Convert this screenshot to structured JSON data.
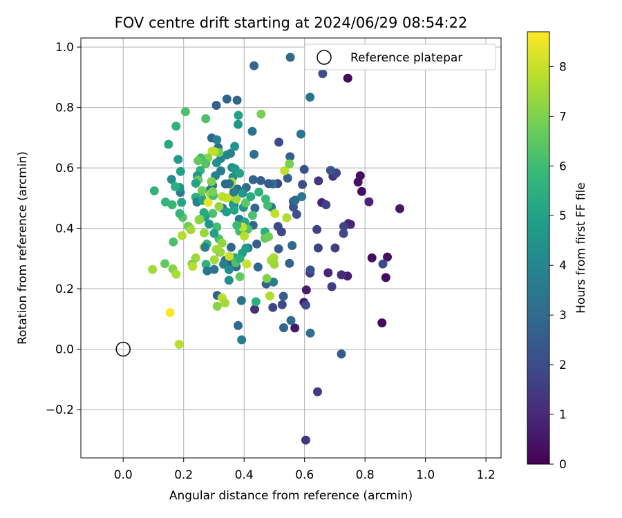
{
  "chart_data": {
    "type": "scatter",
    "title": "FOV centre drift starting at 2024/06/29 08:54:22",
    "xlabel": "Angular distance from reference (arcmin)",
    "ylabel": "Rotation from reference (arcmin)",
    "xlim": [
      -0.14,
      1.25
    ],
    "ylim": [
      -0.36,
      1.03
    ],
    "xticks": [
      "0.0",
      "0.2",
      "0.4",
      "0.6",
      "0.8",
      "1.0",
      "1.2"
    ],
    "xtick_values": [
      0.0,
      0.2,
      0.4,
      0.6,
      0.8,
      1.0,
      1.2
    ],
    "yticks": [
      "−0.2",
      "0.0",
      "0.2",
      "0.4",
      "0.6",
      "0.8",
      "1.0"
    ],
    "ytick_values": [
      -0.2,
      0.0,
      0.2,
      0.4,
      0.6,
      0.8,
      1.0
    ],
    "grid": true,
    "legend": {
      "position": "top-right",
      "entries": [
        "Reference platepar"
      ]
    },
    "reference": {
      "x": 0.0,
      "y": 0.0
    },
    "colorbar": {
      "label": "Hours from first FF file",
      "min": 0,
      "max": 8.7,
      "ticks": [
        "0",
        "1",
        "2",
        "3",
        "4",
        "5",
        "6",
        "7",
        "8"
      ],
      "tick_values": [
        0,
        1,
        2,
        3,
        4,
        5,
        6,
        7,
        8
      ],
      "colormap": "viridis"
    },
    "points": [
      [
        0.743,
        0.897,
        0.2
      ],
      [
        0.856,
        0.087,
        0.2
      ],
      [
        0.915,
        0.465,
        0.6
      ],
      [
        0.869,
        0.237,
        0.3
      ],
      [
        0.874,
        0.305,
        0.4
      ],
      [
        0.823,
        0.302,
        0.3
      ],
      [
        0.784,
        0.574,
        0.4
      ],
      [
        0.777,
        0.553,
        0.4
      ],
      [
        0.789,
        0.522,
        0.3
      ],
      [
        0.813,
        0.488,
        0.9
      ],
      [
        0.745,
        0.416,
        1.1
      ],
      [
        0.742,
        0.242,
        0.7
      ],
      [
        0.722,
        0.246,
        1.1
      ],
      [
        0.752,
        0.413,
        0.9
      ],
      [
        0.657,
        0.485,
        0.8
      ],
      [
        0.678,
        0.253,
        0.9
      ],
      [
        0.568,
        0.07,
        0.6
      ],
      [
        0.598,
        0.155,
        0.6
      ],
      [
        0.606,
        0.196,
        0.7
      ],
      [
        0.604,
        -0.301,
        1.3
      ],
      [
        0.643,
        -0.141,
        1.5
      ],
      [
        0.618,
        0.252,
        1.4
      ],
      [
        0.646,
        0.557,
        1.3
      ],
      [
        0.694,
        0.572,
        1.3
      ],
      [
        0.729,
        0.383,
        1.9
      ],
      [
        0.705,
        0.583,
        1.8
      ],
      [
        0.641,
        0.396,
        1.7
      ],
      [
        0.645,
        0.335,
        1.7
      ],
      [
        0.701,
        0.335,
        1.6
      ],
      [
        0.69,
        0.207,
        1.6
      ],
      [
        0.671,
        0.478,
        1.7
      ],
      [
        0.859,
        0.282,
        1.9
      ],
      [
        0.73,
        0.406,
        1.8
      ],
      [
        0.66,
        0.912,
        2.1
      ],
      [
        0.722,
        -0.016,
        2.5
      ],
      [
        0.686,
        0.592,
        2.3
      ],
      [
        0.435,
        0.132,
        1.2
      ],
      [
        0.495,
        0.138,
        1.8
      ],
      [
        0.526,
        0.147,
        1.9
      ],
      [
        0.515,
        0.685,
        2.0
      ],
      [
        0.511,
        0.548,
        1.8
      ],
      [
        0.524,
        0.388,
        1.9
      ],
      [
        0.512,
        0.406,
        2.0
      ],
      [
        0.604,
        0.146,
        2.0
      ],
      [
        0.593,
        0.545,
        2.1
      ],
      [
        0.574,
        0.446,
        2.1
      ],
      [
        0.599,
        0.595,
        2.2
      ],
      [
        0.563,
        0.489,
        2.2
      ],
      [
        0.619,
        0.262,
        2.2
      ],
      [
        0.563,
        0.47,
        2.4
      ],
      [
        0.514,
        0.332,
        2.5
      ],
      [
        0.53,
        0.175,
        2.5
      ],
      [
        0.544,
        0.566,
        2.6
      ],
      [
        0.55,
        0.284,
        2.7
      ],
      [
        0.552,
        0.637,
        2.7
      ],
      [
        0.531,
        0.071,
        2.8
      ],
      [
        0.559,
        0.343,
        2.9
      ],
      [
        0.555,
        0.095,
        3.0
      ],
      [
        0.619,
        0.053,
        3.2
      ],
      [
        0.553,
        0.966,
        3.0
      ],
      [
        0.433,
        0.938,
        2.9
      ],
      [
        0.343,
        0.828,
        2.8
      ],
      [
        0.377,
        0.824,
        2.8
      ],
      [
        0.308,
        0.807,
        2.6
      ],
      [
        0.618,
        0.834,
        3.3
      ],
      [
        0.588,
        0.712,
        3.4
      ],
      [
        0.591,
        0.505,
        3.5
      ],
      [
        0.569,
        0.493,
        3.1
      ],
      [
        0.495,
        0.547,
        3.2
      ],
      [
        0.481,
        0.548,
        2.5
      ],
      [
        0.455,
        0.558,
        2.6
      ],
      [
        0.43,
        0.561,
        2.7
      ],
      [
        0.433,
        0.645,
        3.2
      ],
      [
        0.427,
        0.721,
        3.4
      ],
      [
        0.407,
        0.535,
        3.1
      ],
      [
        0.436,
        0.467,
        2.9
      ],
      [
        0.43,
        0.41,
        3.0
      ],
      [
        0.442,
        0.348,
        2.6
      ],
      [
        0.446,
        0.272,
        2.9
      ],
      [
        0.473,
        0.216,
        2.7
      ],
      [
        0.49,
        0.47,
        3.6
      ],
      [
        0.497,
        0.222,
        3.6
      ],
      [
        0.413,
        0.335,
        3.3
      ],
      [
        0.374,
        0.273,
        2.9
      ],
      [
        0.38,
        0.078,
        2.9
      ],
      [
        0.391,
        0.161,
        3.3
      ],
      [
        0.392,
        0.031,
        3.7
      ],
      [
        0.311,
        0.178,
        2.7
      ],
      [
        0.32,
        0.321,
        3.0
      ],
      [
        0.338,
        0.294,
        3.1
      ],
      [
        0.358,
        0.285,
        2.5
      ],
      [
        0.357,
        0.337,
        2.9
      ],
      [
        0.332,
        0.281,
        3.8
      ],
      [
        0.35,
        0.263,
        4.3
      ],
      [
        0.35,
        0.228,
        4.4
      ],
      [
        0.378,
        0.53,
        3.0
      ],
      [
        0.367,
        0.477,
        3.4
      ],
      [
        0.384,
        0.43,
        3.6
      ],
      [
        0.329,
        0.467,
        3.5
      ],
      [
        0.296,
        0.542,
        3.5
      ],
      [
        0.286,
        0.526,
        3.6
      ],
      [
        0.293,
        0.699,
        2.8
      ],
      [
        0.314,
        0.667,
        3.1
      ],
      [
        0.323,
        0.631,
        3.8
      ],
      [
        0.31,
        0.693,
        3.9
      ],
      [
        0.343,
        0.643,
        4.0
      ],
      [
        0.355,
        0.648,
        3.9
      ],
      [
        0.36,
        0.601,
        4.3
      ],
      [
        0.369,
        0.671,
        4.5
      ],
      [
        0.38,
        0.744,
        4.6
      ],
      [
        0.381,
        0.774,
        5.0
      ],
      [
        0.363,
        0.57,
        4.4
      ],
      [
        0.37,
        0.597,
        4.7
      ],
      [
        0.385,
        0.582,
        5.0
      ],
      [
        0.364,
        0.48,
        4.6
      ],
      [
        0.398,
        0.469,
        4.6
      ],
      [
        0.402,
        0.421,
        5.1
      ],
      [
        0.406,
        0.334,
        4.8
      ],
      [
        0.394,
        0.318,
        4.9
      ],
      [
        0.369,
        0.303,
        5.3
      ],
      [
        0.372,
        0.286,
        6.2
      ],
      [
        0.386,
        0.24,
        6.6
      ],
      [
        0.412,
        0.397,
        6.3
      ],
      [
        0.428,
        0.443,
        6.2
      ],
      [
        0.471,
        0.497,
        5.9
      ],
      [
        0.478,
        0.476,
        6.0
      ],
      [
        0.469,
        0.388,
        5.4
      ],
      [
        0.469,
        0.367,
        6.6
      ],
      [
        0.481,
        0.372,
        6.8
      ],
      [
        0.475,
        0.234,
        7.0
      ],
      [
        0.49,
        0.294,
        7.4
      ],
      [
        0.485,
        0.176,
        7.7
      ],
      [
        0.498,
        0.303,
        7.6
      ],
      [
        0.5,
        0.281,
        7.4
      ],
      [
        0.502,
        0.449,
        7.9
      ],
      [
        0.534,
        0.591,
        7.9
      ],
      [
        0.541,
        0.435,
        7.7
      ],
      [
        0.55,
        0.613,
        6.9
      ],
      [
        0.439,
        0.157,
        5.4
      ],
      [
        0.405,
        0.484,
        6.5
      ],
      [
        0.359,
        0.553,
        7.6
      ],
      [
        0.352,
        0.545,
        7.8
      ],
      [
        0.36,
        0.506,
        7.6
      ],
      [
        0.374,
        0.497,
        7.5
      ],
      [
        0.343,
        0.5,
        8.0
      ],
      [
        0.328,
        0.505,
        7.8
      ],
      [
        0.317,
        0.472,
        7.3
      ],
      [
        0.31,
        0.404,
        6.1
      ],
      [
        0.317,
        0.365,
        6.2
      ],
      [
        0.327,
        0.351,
        7.3
      ],
      [
        0.308,
        0.33,
        7.5
      ],
      [
        0.322,
        0.321,
        7.4
      ],
      [
        0.302,
        0.296,
        7.5
      ],
      [
        0.274,
        0.281,
        5.6
      ],
      [
        0.278,
        0.259,
        3.3
      ],
      [
        0.301,
        0.264,
        3.3
      ],
      [
        0.327,
        0.17,
        7.8
      ],
      [
        0.311,
        0.142,
        7.1
      ],
      [
        0.337,
        0.153,
        7.5
      ],
      [
        0.385,
        0.391,
        6.0
      ],
      [
        0.395,
        0.404,
        7.9
      ],
      [
        0.401,
        0.374,
        7.8
      ],
      [
        0.351,
        0.307,
        8.0
      ],
      [
        0.409,
        0.282,
        8.0
      ],
      [
        0.456,
        0.778,
        6.9
      ],
      [
        0.449,
        0.52,
        5.5
      ],
      [
        0.422,
        0.505,
        5.3
      ],
      [
        0.395,
        0.516,
        4.6
      ],
      [
        0.366,
        0.52,
        3.8
      ],
      [
        0.351,
        0.548,
        3.4
      ],
      [
        0.338,
        0.547,
        3.0
      ],
      [
        0.323,
        0.59,
        3.6
      ],
      [
        0.305,
        0.574,
        3.8
      ],
      [
        0.309,
        0.617,
        4.4
      ],
      [
        0.317,
        0.651,
        6.8
      ],
      [
        0.302,
        0.654,
        7.7
      ],
      [
        0.294,
        0.655,
        7.9
      ],
      [
        0.28,
        0.633,
        7.1
      ],
      [
        0.273,
        0.614,
        6.4
      ],
      [
        0.257,
        0.633,
        6.0
      ],
      [
        0.255,
        0.592,
        5.6
      ],
      [
        0.245,
        0.574,
        4.6
      ],
      [
        0.248,
        0.56,
        6.6
      ],
      [
        0.261,
        0.525,
        6.8
      ],
      [
        0.259,
        0.504,
        6.6
      ],
      [
        0.24,
        0.503,
        5.5
      ],
      [
        0.244,
        0.487,
        3.8
      ],
      [
        0.263,
        0.492,
        5.0
      ],
      [
        0.281,
        0.486,
        8.4
      ],
      [
        0.289,
        0.514,
        7.5
      ],
      [
        0.298,
        0.508,
        6.1
      ],
      [
        0.296,
        0.449,
        6.2
      ],
      [
        0.271,
        0.438,
        4.9
      ],
      [
        0.267,
        0.452,
        5.3
      ],
      [
        0.254,
        0.43,
        6.6
      ],
      [
        0.251,
        0.428,
        7.2
      ],
      [
        0.284,
        0.414,
        4.6
      ],
      [
        0.301,
        0.383,
        4.9
      ],
      [
        0.268,
        0.385,
        7.4
      ],
      [
        0.267,
        0.339,
        8.3
      ],
      [
        0.277,
        0.348,
        5.8
      ],
      [
        0.271,
        0.337,
        3.8
      ],
      [
        0.24,
        0.302,
        7.4
      ],
      [
        0.228,
        0.282,
        6.9
      ],
      [
        0.23,
        0.274,
        7.8
      ],
      [
        0.222,
        0.4,
        7.3
      ],
      [
        0.215,
        0.407,
        6.8
      ],
      [
        0.224,
        0.395,
        7.5
      ],
      [
        0.195,
        0.376,
        7.7
      ],
      [
        0.197,
        0.436,
        6.4
      ],
      [
        0.187,
        0.449,
        5.8
      ],
      [
        0.193,
        0.486,
        5.1
      ],
      [
        0.189,
        0.519,
        3.6
      ],
      [
        0.187,
        0.535,
        4.6
      ],
      [
        0.19,
        0.588,
        4.9
      ],
      [
        0.182,
        0.628,
        4.7
      ],
      [
        0.175,
        0.738,
        5.6
      ],
      [
        0.206,
        0.786,
        6.2
      ],
      [
        0.15,
        0.678,
        5.2
      ],
      [
        0.16,
        0.562,
        4.2
      ],
      [
        0.172,
        0.538,
        5.5
      ],
      [
        0.14,
        0.487,
        5.7
      ],
      [
        0.103,
        0.524,
        5.6
      ],
      [
        0.162,
        0.478,
        5.8
      ],
      [
        0.166,
        0.355,
        6.2
      ],
      [
        0.138,
        0.283,
        6.6
      ],
      [
        0.164,
        0.266,
        7.1
      ],
      [
        0.097,
        0.264,
        7.5
      ],
      [
        0.175,
        0.248,
        7.6
      ],
      [
        0.155,
        0.121,
        8.7
      ],
      [
        0.185,
        0.016,
        7.8
      ],
      [
        0.24,
        0.549,
        5.0
      ],
      [
        0.273,
        0.763,
        6.2
      ],
      [
        0.248,
        0.624,
        6.6
      ],
      [
        0.292,
        0.555,
        7.0
      ],
      [
        0.296,
        0.521,
        6.9
      ],
      [
        0.342,
        0.454,
        4.8
      ],
      [
        0.367,
        0.46,
        5.1
      ],
      [
        0.376,
        0.41,
        5.9
      ],
      [
        0.385,
        0.3,
        5.5
      ]
    ]
  }
}
